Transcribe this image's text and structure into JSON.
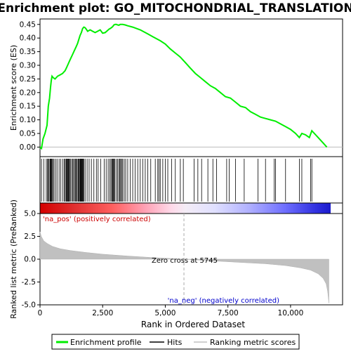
{
  "chart_data": {
    "type": "line",
    "title": "Enrichment plot: GO_MITOCHONDRIAL_TRANSLATION",
    "colors": {
      "enrichment_line": "#00ee00",
      "hits": "#000000",
      "ranking_fill": "#c0c0c0",
      "pos_label": "#cc0000",
      "neg_label": "#0000cc",
      "zero_line": "#aaaaaa",
      "axis": "#000000"
    },
    "top_panel": {
      "ylabel": "Enrichment score (ES)",
      "ylim": [
        -0.035,
        0.47
      ],
      "yticks": [
        0.0,
        0.05,
        0.1,
        0.15,
        0.2,
        0.25,
        0.3,
        0.35,
        0.4,
        0.45
      ],
      "ytick_labels": [
        "0.00",
        "0.05",
        "0.10",
        "0.15",
        "0.20",
        "0.25",
        "0.30",
        "0.35",
        "0.40",
        "0.45"
      ],
      "es_profile": {
        "x": [
          0,
          60,
          120,
          200,
          280,
          330,
          380,
          420,
          450,
          480,
          520,
          600,
          700,
          800,
          900,
          1000,
          1050,
          1100,
          1150,
          1200,
          1250,
          1300,
          1350,
          1400,
          1450,
          1500,
          1550,
          1600,
          1650,
          1700,
          1750,
          1800,
          1850,
          1900,
          2000,
          2100,
          2200,
          2300,
          2400,
          2500,
          2600,
          2700,
          2750,
          2800,
          2850,
          2900,
          2950,
          3000,
          3050,
          3100,
          3150,
          3200,
          3300,
          3400,
          3500,
          3700,
          4000,
          4300,
          4500,
          4800,
          5000,
          5200,
          5400,
          5600,
          5800,
          6000,
          6200,
          6400,
          6600,
          6800,
          7000,
          7200,
          7400,
          7600,
          7800,
          8000,
          8200,
          8400,
          8600,
          8800,
          9000,
          9200,
          9400,
          9600,
          9800,
          10000,
          10200,
          10350,
          10450,
          10600,
          10750,
          10850,
          10950,
          11100,
          11300,
          11450
        ],
        "y": [
          0.0,
          -0.005,
          0.03,
          0.05,
          0.08,
          0.15,
          0.18,
          0.22,
          0.245,
          0.26,
          0.255,
          0.25,
          0.26,
          0.265,
          0.27,
          0.28,
          0.29,
          0.3,
          0.31,
          0.32,
          0.33,
          0.34,
          0.35,
          0.36,
          0.37,
          0.38,
          0.395,
          0.41,
          0.42,
          0.435,
          0.44,
          0.438,
          0.432,
          0.425,
          0.43,
          0.425,
          0.42,
          0.425,
          0.43,
          0.418,
          0.42,
          0.428,
          0.432,
          0.435,
          0.438,
          0.442,
          0.448,
          0.45,
          0.45,
          0.448,
          0.447,
          0.45,
          0.45,
          0.448,
          0.445,
          0.44,
          0.43,
          0.415,
          0.405,
          0.39,
          0.378,
          0.36,
          0.345,
          0.33,
          0.31,
          0.29,
          0.27,
          0.255,
          0.24,
          0.225,
          0.215,
          0.2,
          0.185,
          0.18,
          0.165,
          0.15,
          0.145,
          0.13,
          0.12,
          0.11,
          0.105,
          0.1,
          0.095,
          0.085,
          0.075,
          0.065,
          0.05,
          0.035,
          0.05,
          0.045,
          0.035,
          0.06,
          0.05,
          0.035,
          0.015,
          0.0
        ]
      }
    },
    "hits_panel": {
      "hit_positions": [
        60,
        150,
        250,
        300,
        330,
        360,
        400,
        420,
        440,
        460,
        480,
        520,
        560,
        620,
        680,
        760,
        820,
        900,
        960,
        1000,
        1040,
        1060,
        1090,
        1110,
        1130,
        1150,
        1180,
        1210,
        1260,
        1300,
        1340,
        1380,
        1420,
        1450,
        1480,
        1520,
        1540,
        1570,
        1600,
        1620,
        1640,
        1660,
        1680,
        1700,
        1720,
        1750,
        1800,
        1880,
        1960,
        2050,
        2150,
        2250,
        2320,
        2420,
        2560,
        2640,
        2720,
        2780,
        2830,
        2870,
        2900,
        2930,
        2960,
        2990,
        3050,
        3100,
        3150,
        3190,
        3220,
        3260,
        3300,
        3360,
        3420,
        3500,
        3600,
        3700,
        3800,
        3900,
        4000,
        4100,
        4200,
        4300,
        4420,
        4600,
        4700,
        4750,
        4800,
        4900,
        5000,
        5100,
        5250,
        5400,
        5600,
        5720,
        6150,
        6300,
        6450,
        6700,
        6900,
        7050,
        7450,
        7550,
        7800,
        8150,
        8700,
        9000,
        9350,
        9400,
        9800,
        10350,
        10450,
        10800,
        10850
      ]
    },
    "ranking_panel": {
      "ylabel": "Ranked list metric (PreRanked)",
      "ylim": [
        -5.0,
        5.0
      ],
      "yticks": [
        -5.0,
        -2.5,
        0.0,
        2.5,
        5.0
      ],
      "ytick_labels": [
        "-5.0",
        "-2.5",
        "0.0",
        "2.5",
        "5.0"
      ],
      "metric_curve": {
        "x": [
          0,
          50,
          150,
          300,
          500,
          800,
          1200,
          1800,
          2500,
          3500,
          4500,
          5745,
          7000,
          8000,
          9000,
          9800,
          10400,
          10800,
          11100,
          11300,
          11420,
          11480,
          11530
        ],
        "y": [
          3.0,
          2.5,
          2.0,
          1.7,
          1.4,
          1.15,
          0.95,
          0.75,
          0.55,
          0.35,
          0.18,
          0.0,
          -0.2,
          -0.35,
          -0.5,
          -0.7,
          -0.95,
          -1.2,
          -1.6,
          -2.1,
          -2.7,
          -3.5,
          -4.8
        ]
      },
      "zero_cross_label": "Zero cross at 5745",
      "zero_cross_x": 5745,
      "pos_label": "'na_pos' (positively correlated)",
      "neg_label": "'na_neg' (negatively correlated)"
    },
    "xaxis": {
      "xlabel": "Rank in Ordered Dataset",
      "xlim": [
        0,
        11600
      ],
      "xticks": [
        0,
        2500,
        5000,
        7500,
        10000
      ],
      "xtick_labels": [
        "0",
        "2,500",
        "5,000",
        "7,500",
        "10,000"
      ]
    },
    "legend": {
      "placement": "bottom",
      "items": [
        {
          "label": "Enrichment profile",
          "color": "#00ee00"
        },
        {
          "label": "Hits",
          "color": "#000000"
        },
        {
          "label": "Ranking metric scores",
          "color": "#c0c0c0"
        }
      ]
    }
  }
}
